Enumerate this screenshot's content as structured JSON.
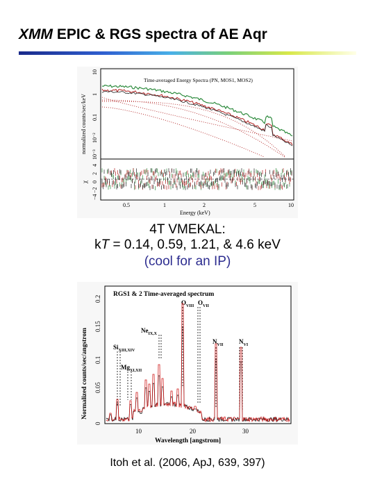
{
  "slide": {
    "title_italic": "XMM",
    "title_rest": " EPIC & RGS spectra of AE Aqr",
    "caption_line1": "4T VMEKAL:",
    "caption_kT_prefix": "k",
    "caption_kT_T": "T",
    "caption_kT_values": " = 0.14, 0.59, 1.21, & 4.6 keV",
    "caption_note": "(cool for an IP)",
    "reference": "Itoh et al. (2006, ApJ, 639, 397)",
    "accent_colors": {
      "title_rule_start": "#1a2a8a",
      "note_color": "#2c2c8f"
    }
  },
  "epic_plot": {
    "title": "Time-averaged Energy Spectra (PN, MOS1, MOS2)",
    "ylabel": "normalized counts/sec/keV",
    "resid_ylabel": "χ",
    "xlabel": "Energy (keV)",
    "y_ticks": [
      "10",
      "1",
      "0.1",
      "10⁻²",
      "10⁻³"
    ],
    "resid_ticks": [
      "4",
      "2",
      "0",
      "−2",
      "−4"
    ],
    "x_ticks": [
      "0.5",
      "1",
      "2",
      "5",
      "10"
    ],
    "series_colors": {
      "pn": "#2e8b3e",
      "mos": "#b02020",
      "mos2": "#222222"
    }
  },
  "rgs_plot": {
    "title": "RGS1 & 2 Time-averaged spectrum",
    "ylabel": "Normalized counts/sec/angstrom",
    "xlabel": "Wavelength [angstrom]",
    "y_ticks": [
      "0.2",
      "0.15",
      "0.1",
      "0.05",
      "0"
    ],
    "x_ticks": [
      "10",
      "20",
      "30"
    ],
    "line_labels": [
      {
        "base": "O",
        "ion": "VIII"
      },
      {
        "base": "O",
        "ion": "VII"
      },
      {
        "base": "Ne",
        "ion": "IX,X"
      },
      {
        "base": "Si",
        "ion": "XIII,XIV"
      },
      {
        "base": "Mg",
        "ion": "XI,XII"
      },
      {
        "base": "N",
        "ion": "VII"
      },
      {
        "base": "N",
        "ion": "VI"
      }
    ],
    "series_colors": {
      "rgs1": "#111111",
      "rgs2": "#d02020"
    }
  }
}
